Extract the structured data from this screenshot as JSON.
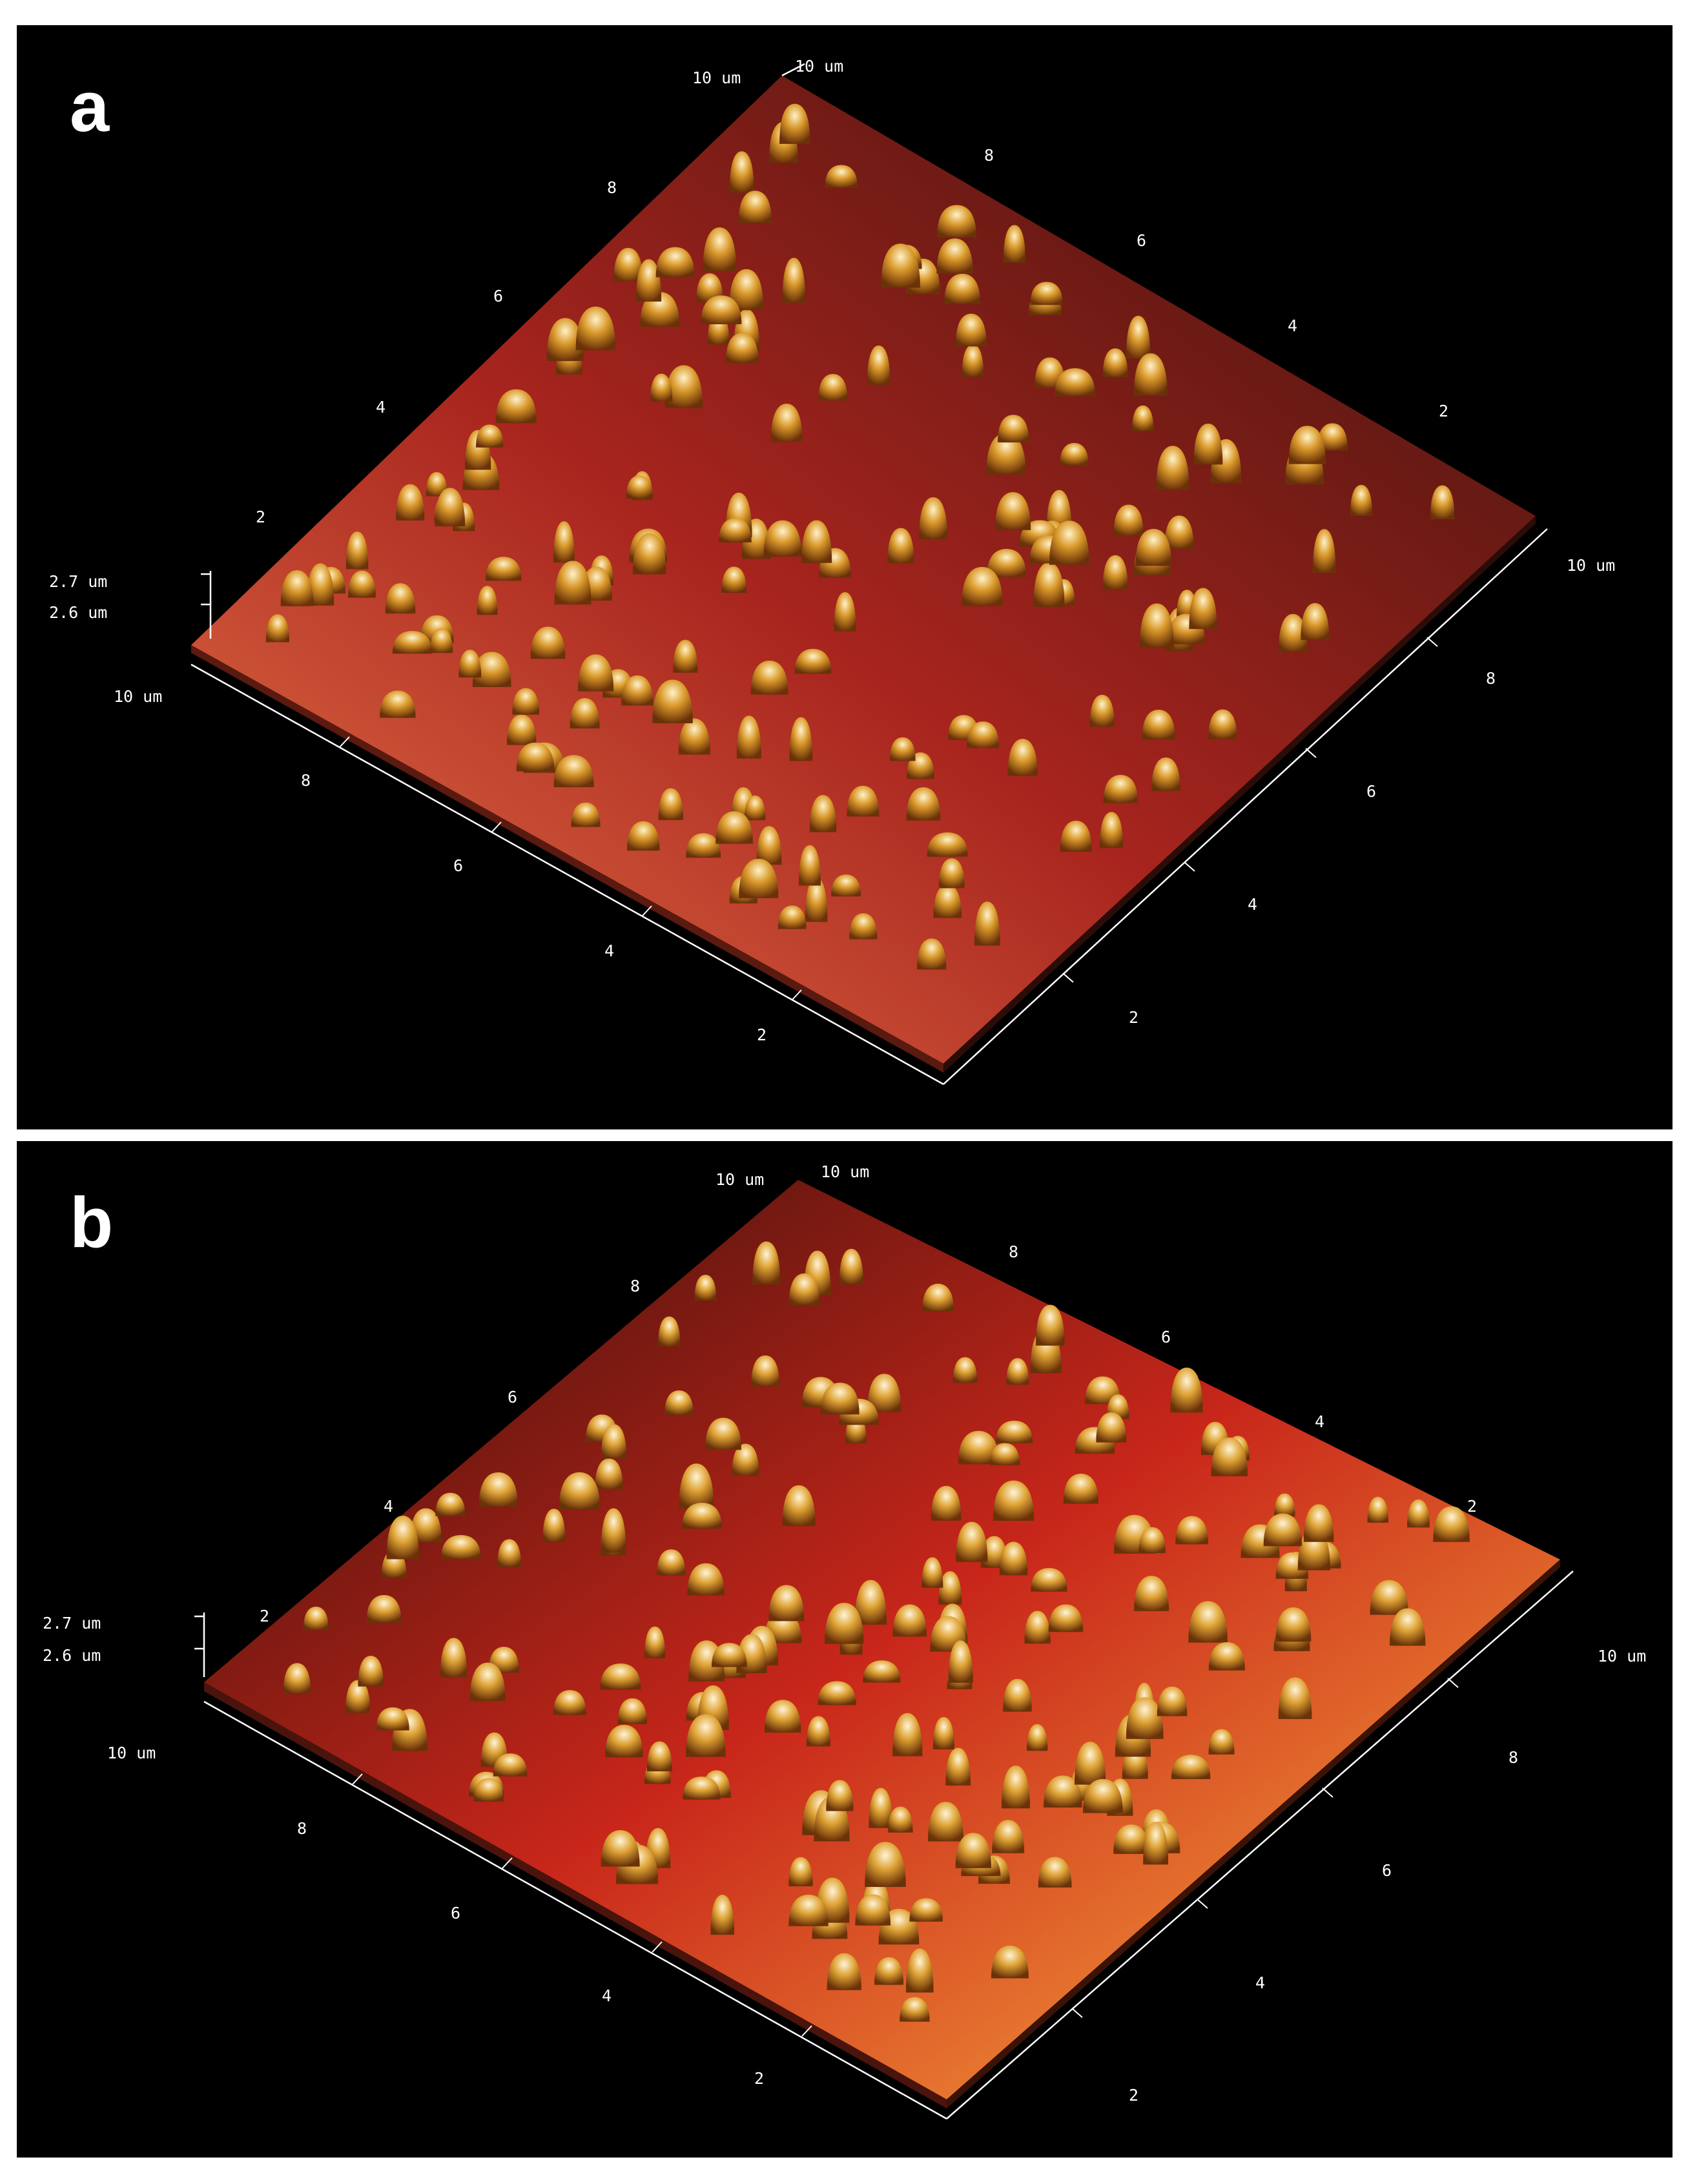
{
  "panels": [
    {
      "id": "a",
      "letter": "a",
      "surface_colors": {
        "light": "#e8784a",
        "mid": "#a8241e",
        "dark": "#3a120c"
      },
      "z_scale": [
        "2.7 um",
        "2.6 um"
      ],
      "left_axis": {
        "corner": "10 um",
        "ticks": [
          "8",
          "6",
          "4",
          "2"
        ]
      },
      "top_left_edge": {
        "corner": "10 um",
        "ticks": [
          "8",
          "6",
          "4",
          "2"
        ]
      },
      "top_right_edge": {
        "corner": "10 um",
        "ticks": [
          "8",
          "6",
          "4",
          "2"
        ]
      },
      "right_axis": {
        "corner": "10 um",
        "ticks": [
          "8",
          "6",
          "4",
          "2"
        ]
      }
    },
    {
      "id": "b",
      "letter": "b",
      "surface_colors": {
        "light": "#ffb640",
        "mid": "#c8261a",
        "dark": "#2e0e0a"
      },
      "z_scale": [
        "2.7 um",
        "2.6 um"
      ],
      "left_axis": {
        "corner": "10 um",
        "ticks": [
          "8",
          "6",
          "4",
          "2"
        ]
      },
      "top_left_edge": {
        "corner": "10 um",
        "ticks": [
          "8",
          "6",
          "4",
          "2"
        ]
      },
      "top_right_edge": {
        "corner": "10 um",
        "ticks": [
          "8",
          "6",
          "4",
          "2"
        ]
      },
      "right_axis": {
        "corner": "10 um",
        "ticks": [
          "8",
          "6",
          "4",
          "2"
        ]
      }
    }
  ]
}
